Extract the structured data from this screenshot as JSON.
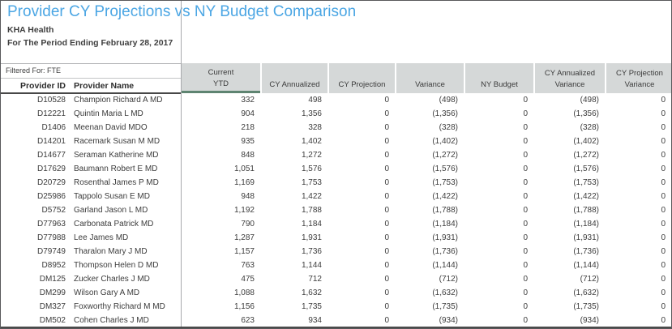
{
  "report": {
    "title": "Provider CY Projections vs NY Budget Comparison",
    "organization": "KHA Health",
    "period": "For The Period Ending February 28, 2017",
    "filter_label": "Filtered For: FTE"
  },
  "colors": {
    "title_blue": "#4ba6e4",
    "header_gray": "#d5d8d8",
    "accent_green": "#5e8471",
    "divider_gray": "#a7a9ac"
  },
  "table": {
    "row_headers": {
      "provider_id": "Provider ID",
      "provider_name": "Provider Name"
    },
    "columns": [
      {
        "line1": "Current",
        "line2": "YTD",
        "accent": true
      },
      {
        "line1": "",
        "line2": "CY Annualized"
      },
      {
        "line1": "",
        "line2": "CY Projection"
      },
      {
        "line1": "",
        "line2": "Variance"
      },
      {
        "line1": "",
        "line2": "NY Budget"
      },
      {
        "line1": "CY Annualized",
        "line2": "Variance"
      },
      {
        "line1": "CY Projection",
        "line2": "Variance"
      }
    ],
    "rows": [
      {
        "id": "D10528",
        "name": "Champion Richard A MD",
        "values": [
          "332",
          "498",
          "0",
          "(498)",
          "0",
          "(498)",
          "0"
        ]
      },
      {
        "id": "D12221",
        "name": "Quintin Maria L MD",
        "values": [
          "904",
          "1,356",
          "0",
          "(1,356)",
          "0",
          "(1,356)",
          "0"
        ]
      },
      {
        "id": "D1406",
        "name": "Meenan David MDO",
        "values": [
          "218",
          "328",
          "0",
          "(328)",
          "0",
          "(328)",
          "0"
        ]
      },
      {
        "id": "D14201",
        "name": "Racemark Susan M MD",
        "values": [
          "935",
          "1,402",
          "0",
          "(1,402)",
          "0",
          "(1,402)",
          "0"
        ]
      },
      {
        "id": "D14677",
        "name": "Seraman Katherine MD",
        "values": [
          "848",
          "1,272",
          "0",
          "(1,272)",
          "0",
          "(1,272)",
          "0"
        ]
      },
      {
        "id": "D17629",
        "name": "Baumann Robert E MD",
        "values": [
          "1,051",
          "1,576",
          "0",
          "(1,576)",
          "0",
          "(1,576)",
          "0"
        ]
      },
      {
        "id": "D20729",
        "name": "Rosenthal James P MD",
        "values": [
          "1,169",
          "1,753",
          "0",
          "(1,753)",
          "0",
          "(1,753)",
          "0"
        ]
      },
      {
        "id": "D25986",
        "name": "Tappolo Susan E MD",
        "values": [
          "948",
          "1,422",
          "0",
          "(1,422)",
          "0",
          "(1,422)",
          "0"
        ]
      },
      {
        "id": "D5752",
        "name": "Garland Jason L MD",
        "values": [
          "1,192",
          "1,788",
          "0",
          "(1,788)",
          "0",
          "(1,788)",
          "0"
        ]
      },
      {
        "id": "D77963",
        "name": "Carbonata Patrick MD",
        "values": [
          "790",
          "1,184",
          "0",
          "(1,184)",
          "0",
          "(1,184)",
          "0"
        ]
      },
      {
        "id": "D77988",
        "name": "Lee James MD",
        "values": [
          "1,287",
          "1,931",
          "0",
          "(1,931)",
          "0",
          "(1,931)",
          "0"
        ]
      },
      {
        "id": "D79749",
        "name": "Tharalon Mary J MD",
        "values": [
          "1,157",
          "1,736",
          "0",
          "(1,736)",
          "0",
          "(1,736)",
          "0"
        ]
      },
      {
        "id": "D8952",
        "name": "Thompson Helen D MD",
        "values": [
          "763",
          "1,144",
          "0",
          "(1,144)",
          "0",
          "(1,144)",
          "0"
        ]
      },
      {
        "id": "DM125",
        "name": "Zucker Charles J MD",
        "values": [
          "475",
          "712",
          "0",
          "(712)",
          "0",
          "(712)",
          "0"
        ]
      },
      {
        "id": "DM299",
        "name": "Wilson Gary A MD",
        "values": [
          "1,088",
          "1,632",
          "0",
          "(1,632)",
          "0",
          "(1,632)",
          "0"
        ]
      },
      {
        "id": "DM327",
        "name": "Foxworthy Richard M MD",
        "values": [
          "1,156",
          "1,735",
          "0",
          "(1,735)",
          "0",
          "(1,735)",
          "0"
        ]
      },
      {
        "id": "DM502",
        "name": "Cohen Charles J MD",
        "values": [
          "623",
          "934",
          "0",
          "(934)",
          "0",
          "(934)",
          "0"
        ]
      }
    ]
  }
}
